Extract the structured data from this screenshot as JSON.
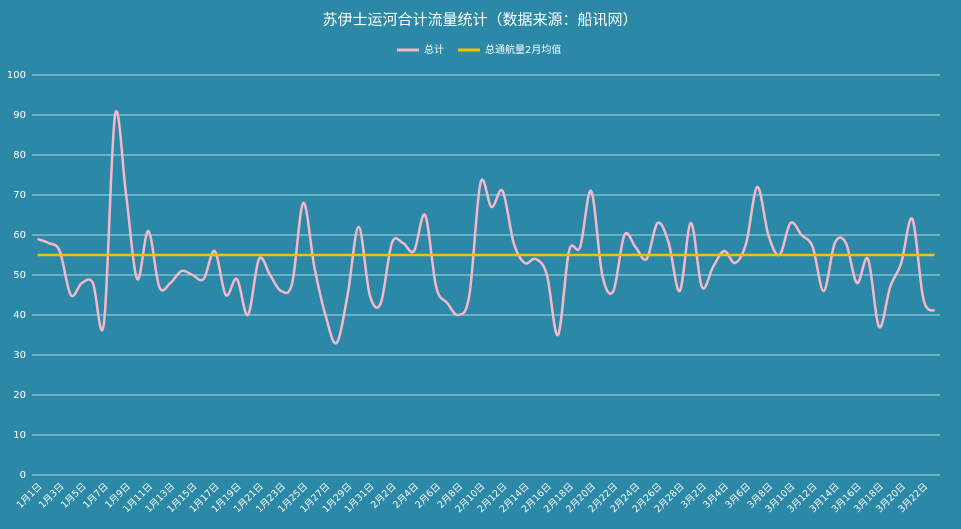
{
  "chart_data": {
    "type": "line",
    "title": "苏伊士运河合计流量统计（数据来源：船讯网）",
    "categories": [
      "1月1日",
      null,
      "1月3日",
      null,
      "1月5日",
      null,
      "1月7日",
      null,
      "1月9日",
      null,
      "1月11日",
      null,
      "1月13日",
      null,
      "1月15日",
      null,
      "1月17日",
      null,
      "1月19日",
      null,
      "1月21日",
      null,
      "1月23日",
      null,
      "1月25日",
      null,
      "1月27日",
      null,
      "1月29日",
      null,
      "1月31日",
      null,
      "2月2日",
      null,
      "2月4日",
      null,
      "2月6日",
      null,
      "2月8日",
      null,
      "2月10日",
      null,
      "2月12日",
      null,
      "2月14日",
      null,
      "2月16日",
      null,
      "2月18日",
      null,
      "2月20日",
      null,
      "2月22日",
      null,
      "2月24日",
      null,
      "2月26日",
      null,
      "2月28日",
      null,
      "3月2日",
      null,
      "3月4日",
      null,
      "3月6日",
      null,
      "3月8日",
      null,
      "3月10日",
      null,
      "3月12日",
      null,
      "3月14日",
      null,
      "3月16日",
      null,
      "3月18日",
      null,
      "3月20日",
      null,
      "3月22日",
      null
    ],
    "series": [
      {
        "name": "总计",
        "color": "#f5b8ca",
        "values": [
          59,
          58,
          56,
          45,
          48,
          48,
          38,
          90,
          70,
          49,
          61,
          47,
          48,
          51,
          50,
          49,
          56,
          45,
          49,
          40,
          54,
          50,
          46,
          48,
          68,
          52,
          40,
          33,
          45,
          62,
          45,
          43,
          58,
          58,
          56,
          65,
          47,
          43,
          40,
          45,
          73,
          67,
          71,
          58,
          53,
          54,
          50,
          35,
          56,
          57,
          71,
          50,
          46,
          60,
          57,
          54,
          63,
          58,
          46,
          63,
          47,
          52,
          56,
          53,
          58,
          72,
          60,
          55,
          63,
          60,
          57,
          46,
          58,
          58,
          48,
          54,
          37,
          47,
          53,
          64,
          44,
          41
        ]
      },
      {
        "name": "总通航量2月均值",
        "color": "#f2c200",
        "values": [
          55,
          55,
          55,
          55,
          55,
          55,
          55,
          55,
          55,
          55,
          55,
          55,
          55,
          55,
          55,
          55,
          55,
          55,
          55,
          55,
          55,
          55,
          55,
          55,
          55,
          55,
          55,
          55,
          55,
          55,
          55,
          55,
          55,
          55,
          55,
          55,
          55,
          55,
          55,
          55,
          55,
          55,
          55,
          55,
          55,
          55,
          55,
          55,
          55,
          55,
          55,
          55,
          55,
          55,
          55,
          55,
          55,
          55,
          55,
          55,
          55,
          55,
          55,
          55,
          55,
          55,
          55,
          55,
          55,
          55,
          55,
          55,
          55,
          55,
          55,
          55,
          55,
          55,
          55,
          55,
          55,
          55
        ]
      }
    ],
    "ylim": [
      0,
      100
    ],
    "yticks": [
      0,
      10,
      20,
      30,
      40,
      50,
      60,
      70,
      80,
      90,
      100
    ],
    "grid": true
  }
}
